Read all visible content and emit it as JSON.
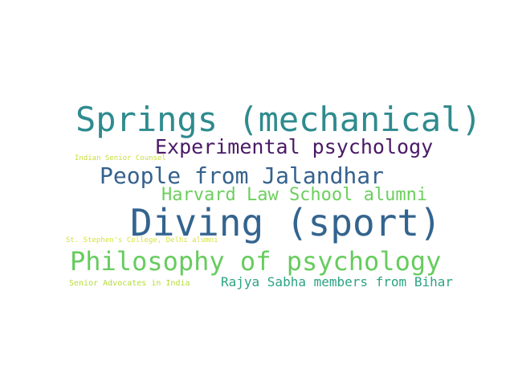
{
  "words": {
    "springs": {
      "text": "Springs (mechanical)",
      "color": "#2e8b8e"
    },
    "exp": {
      "text": "Experimental psychology",
      "color": "#4a1a66"
    },
    "isc": {
      "text": "Indian Senior Counsel",
      "color": "#c9de3a"
    },
    "jal": {
      "text": "People from Jalandhar",
      "color": "#35618d"
    },
    "harvard": {
      "text": "Harvard Law School alumni",
      "color": "#6ccf5d"
    },
    "diving": {
      "text": "Diving (sport)",
      "color": "#33648f"
    },
    "stephen": {
      "text": "St. Stephen's College, Delhi alumni",
      "color": "#d5e23b"
    },
    "phil": {
      "text": "Philosophy of psychology",
      "color": "#66cc5e"
    },
    "senior": {
      "text": "Senior Advocates in India",
      "color": "#b5dc37"
    },
    "rajya": {
      "text": "Rajya Sabha members from Bihar",
      "color": "#2ca383"
    }
  }
}
